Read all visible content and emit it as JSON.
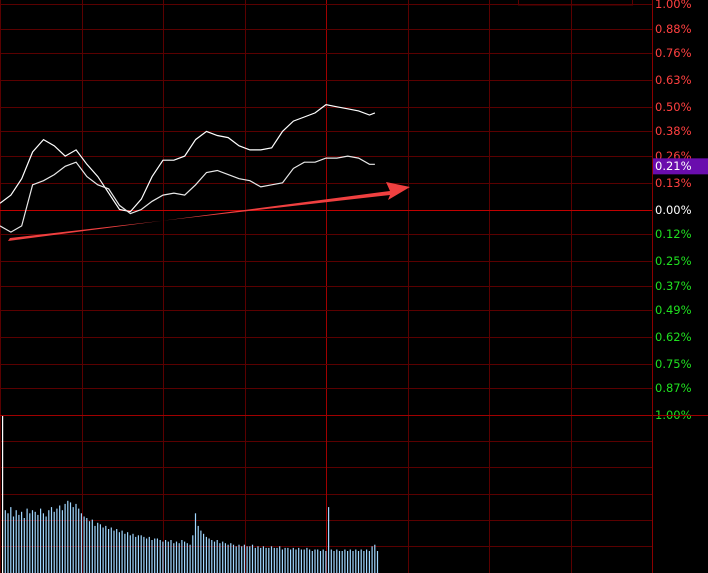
{
  "chart_data": [
    {
      "type": "line",
      "xlim": [
        0,
        240
      ],
      "xticks": [
        0,
        30,
        60,
        90,
        120,
        150,
        180,
        210,
        240
      ],
      "ylim": [
        -1,
        1
      ],
      "yticks": [
        {
          "value": 1.0,
          "label": "1.00%"
        },
        {
          "value": 0.88,
          "label": "0.88%"
        },
        {
          "value": 0.76,
          "label": "0.76%"
        },
        {
          "value": 0.63,
          "label": "0.63%"
        },
        {
          "value": 0.5,
          "label": "0.50%"
        },
        {
          "value": 0.38,
          "label": "0.38%"
        },
        {
          "value": 0.26,
          "label": "0.26%"
        },
        {
          "value": 0.13,
          "label": "0.13%"
        },
        {
          "value": 0,
          "label": "0.00%"
        },
        {
          "value": -0.12,
          "label": "0.12%"
        },
        {
          "value": -0.25,
          "label": "0.25%"
        },
        {
          "value": -0.37,
          "label": "0.37%"
        },
        {
          "value": -0.49,
          "label": "0.49%"
        },
        {
          "value": -0.62,
          "label": "0.62%"
        },
        {
          "value": -0.75,
          "label": "0.75%"
        },
        {
          "value": -0.87,
          "label": "0.87%"
        },
        {
          "value": -1.0,
          "label": "1.00%"
        }
      ],
      "grid": true,
      "current": {
        "value": 0.21,
        "label": "0.21%"
      },
      "x": [
        0,
        4,
        8,
        12,
        16,
        20,
        24,
        28,
        32,
        36,
        40,
        44,
        48,
        52,
        56,
        60,
        64,
        68,
        72,
        76,
        80,
        84,
        88,
        92,
        96,
        100,
        104,
        108,
        112,
        116,
        120,
        124,
        128,
        132,
        136,
        138
      ],
      "series": [
        {
          "color": "#ffffff",
          "values": [
            0.03,
            0.07,
            0.15,
            0.28,
            0.34,
            0.31,
            0.26,
            0.29,
            0.22,
            0.16,
            0.08,
            0.0,
            -0.01,
            0.05,
            0.16,
            0.24,
            0.24,
            0.26,
            0.34,
            0.38,
            0.36,
            0.35,
            0.31,
            0.29,
            0.29,
            0.3,
            0.38,
            0.43,
            0.45,
            0.47,
            0.51,
            0.5,
            0.49,
            0.48,
            0.46,
            0.47
          ]
        },
        {
          "color": "#e8e8e8",
          "values": [
            -0.08,
            -0.11,
            -0.08,
            0.12,
            0.14,
            0.17,
            0.21,
            0.23,
            0.16,
            0.12,
            0.1,
            0.02,
            -0.02,
            0.0,
            0.04,
            0.07,
            0.08,
            0.07,
            0.12,
            0.18,
            0.19,
            0.17,
            0.15,
            0.14,
            0.11,
            0.12,
            0.13,
            0.2,
            0.23,
            0.23,
            0.25,
            0.25,
            0.26,
            0.25,
            0.22,
            0.22
          ]
        }
      ]
    },
    {
      "type": "bar",
      "color": "#9fd6ff",
      "ylim": [
        0,
        100
      ],
      "values": [
        100,
        40,
        38,
        42,
        36,
        40,
        37,
        39,
        35,
        41,
        38,
        40,
        39,
        37,
        41,
        38,
        36,
        40,
        42,
        39,
        41,
        43,
        40,
        44,
        46,
        45,
        42,
        44,
        41,
        38,
        36,
        35,
        33,
        34,
        30,
        32,
        31,
        29,
        30,
        28,
        29,
        27,
        28,
        26,
        27,
        25,
        26,
        24,
        25,
        23,
        24,
        24,
        23,
        22,
        23,
        21,
        22,
        22,
        21,
        20,
        21,
        20,
        21,
        19,
        20,
        19,
        21,
        20,
        19,
        18,
        24,
        38,
        30,
        27,
        25,
        23,
        22,
        21,
        20,
        21,
        19,
        20,
        19,
        18,
        19,
        18,
        17,
        18,
        17,
        18,
        17,
        17,
        18,
        16,
        17,
        16,
        17,
        16,
        16,
        17,
        16,
        16,
        17,
        15,
        16,
        16,
        15,
        16,
        15,
        16,
        15,
        15,
        16,
        15,
        14,
        15,
        15,
        14,
        15,
        14,
        42,
        15,
        14,
        15,
        14,
        14,
        15,
        14,
        15,
        14,
        15,
        14,
        15,
        14,
        15,
        14,
        17,
        18,
        14
      ]
    }
  ]
}
